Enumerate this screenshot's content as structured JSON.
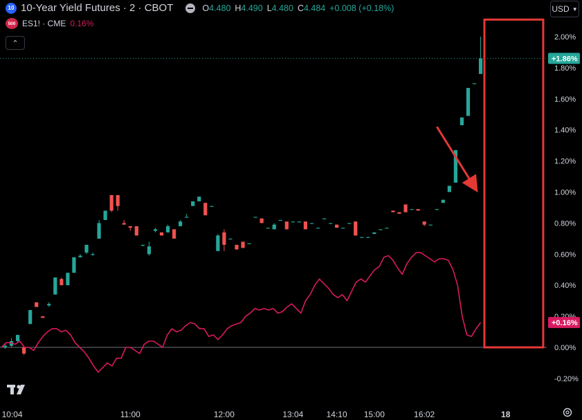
{
  "header": {
    "symbol_badge": "10",
    "title": "10-Year Yield Futures · 2 · CBOT",
    "ohlc": [
      {
        "k": "O",
        "v": "4.480"
      },
      {
        "k": "H",
        "v": "4.490"
      },
      {
        "k": "L",
        "v": "4.480"
      },
      {
        "k": "C",
        "v": "4.484"
      },
      {
        "k": "",
        "v": "+0.008 (+0.18%)"
      }
    ],
    "compare_badge": "500",
    "compare_label": "ES1! · CME",
    "compare_pct": "0.16%",
    "collapse_icon": "chevron-up-icon",
    "currency": "USD"
  },
  "colors": {
    "background": "#000000",
    "up": "#26a69a",
    "down": "#ef5350",
    "compare_line": "#d81b60",
    "annotation": "#e53935",
    "axis_text": "#d1d4dc"
  },
  "chart_data": {
    "type": "line",
    "subtype": "candlestick-with-comparison",
    "y_axis": {
      "unit": "%",
      "ticks": [
        "2.00%",
        "1.80%",
        "1.60%",
        "1.40%",
        "1.20%",
        "1.00%",
        "0.80%",
        "0.60%",
        "0.40%",
        "0.20%",
        "0.00%",
        "-0.20%"
      ],
      "range": [
        -0.25,
        2.1
      ]
    },
    "x_axis": {
      "ticks": [
        {
          "label": "10:04",
          "i": 2
        },
        {
          "label": "11:00",
          "i": 20
        },
        {
          "label": "12:00",
          "i": 35
        },
        {
          "label": "13:04",
          "i": 46
        },
        {
          "label": "14:10",
          "i": 53
        },
        {
          "label": "15:00",
          "i": 59
        },
        {
          "label": "16:02",
          "i": 67
        },
        {
          "label": "18",
          "i": 80
        }
      ],
      "bold_tick": "18"
    },
    "price_labels": [
      {
        "text": "+1.86%",
        "value": 1.86,
        "color": "#26a69a"
      },
      {
        "text": "+0.16%",
        "value": 0.16,
        "color": "#d81b60"
      }
    ],
    "zero_line": 0.0,
    "candles": [
      [
        0.0,
        0.02,
        -0.01,
        0.01
      ],
      [
        0.01,
        0.06,
        0.0,
        0.04
      ],
      [
        0.04,
        0.07,
        0.03,
        0.08
      ],
      [
        0.0,
        0.0,
        -0.05,
        -0.04
      ],
      [
        0.15,
        0.24,
        0.15,
        0.24
      ],
      [
        0.29,
        0.29,
        0.26,
        0.26
      ],
      [
        0.2,
        0.2,
        0.19,
        0.19
      ],
      [
        0.27,
        0.29,
        0.26,
        0.28
      ],
      [
        0.34,
        0.45,
        0.34,
        0.45
      ],
      [
        0.44,
        0.45,
        0.4,
        0.4
      ],
      [
        0.4,
        0.48,
        0.4,
        0.48
      ],
      [
        0.48,
        0.58,
        0.48,
        0.58
      ],
      [
        0.58,
        0.6,
        0.58,
        0.59
      ],
      [
        0.61,
        0.66,
        0.6,
        0.66
      ],
      [
        0.6,
        0.61,
        0.59,
        0.6
      ],
      [
        0.7,
        0.82,
        0.7,
        0.8
      ],
      [
        0.82,
        0.88,
        0.82,
        0.88
      ],
      [
        0.98,
        0.98,
        0.87,
        0.88
      ],
      [
        0.98,
        0.98,
        0.88,
        0.91
      ],
      [
        0.8,
        0.82,
        0.79,
        0.79
      ],
      [
        0.78,
        0.78,
        0.75,
        0.77
      ],
      [
        0.78,
        0.78,
        0.72,
        0.72
      ],
      [
        0.66,
        0.66,
        0.65,
        0.66
      ],
      [
        0.6,
        0.68,
        0.59,
        0.65
      ],
      [
        0.75,
        0.77,
        0.74,
        0.76
      ],
      [
        0.74,
        0.74,
        0.72,
        0.72
      ],
      [
        0.74,
        0.79,
        0.74,
        0.78
      ],
      [
        0.76,
        0.76,
        0.7,
        0.7
      ],
      [
        0.78,
        0.82,
        0.78,
        0.81
      ],
      [
        0.84,
        0.86,
        0.84,
        0.84
      ],
      [
        0.91,
        0.94,
        0.91,
        0.94
      ],
      [
        0.94,
        0.97,
        0.94,
        0.97
      ],
      [
        0.93,
        0.93,
        0.85,
        0.85
      ],
      [
        0.91,
        0.91,
        0.91,
        0.91
      ],
      [
        0.62,
        0.73,
        0.62,
        0.72
      ],
      [
        0.74,
        0.76,
        0.62,
        0.66
      ],
      [
        0.7,
        0.7,
        0.7,
        0.7
      ],
      [
        0.66,
        0.66,
        0.63,
        0.63
      ],
      [
        0.68,
        0.68,
        0.64,
        0.64
      ],
      [
        0.67,
        0.67,
        0.67,
        0.67
      ],
      [
        0.84,
        0.84,
        0.84,
        0.84
      ],
      [
        0.83,
        0.83,
        0.8,
        0.8
      ],
      [
        0.77,
        0.77,
        0.77,
        0.77
      ],
      [
        0.76,
        0.8,
        0.76,
        0.79
      ],
      [
        0.82,
        0.82,
        0.82,
        0.82
      ],
      [
        0.81,
        0.81,
        0.76,
        0.76
      ],
      [
        0.81,
        0.81,
        0.81,
        0.81
      ],
      [
        0.81,
        0.81,
        0.81,
        0.81
      ],
      [
        0.81,
        0.81,
        0.76,
        0.76
      ],
      [
        0.8,
        0.8,
        0.8,
        0.8
      ],
      [
        0.77,
        0.77,
        0.77,
        0.77
      ],
      [
        0.83,
        0.83,
        0.83,
        0.83
      ],
      [
        0.8,
        0.8,
        0.8,
        0.8
      ],
      [
        0.79,
        0.79,
        0.77,
        0.77
      ],
      [
        0.77,
        0.77,
        0.77,
        0.77
      ],
      [
        0.8,
        0.8,
        0.8,
        0.8
      ],
      [
        0.81,
        0.81,
        0.72,
        0.72
      ],
      [
        0.71,
        0.71,
        0.71,
        0.71
      ],
      [
        0.71,
        0.71,
        0.71,
        0.71
      ],
      [
        0.73,
        0.74,
        0.73,
        0.74
      ],
      [
        0.76,
        0.76,
        0.76,
        0.76
      ],
      [
        0.77,
        0.77,
        0.77,
        0.77
      ],
      [
        0.88,
        0.88,
        0.87,
        0.87
      ],
      [
        0.87,
        0.87,
        0.86,
        0.86
      ],
      [
        0.92,
        0.92,
        0.87,
        0.87
      ],
      [
        0.89,
        0.89,
        0.89,
        0.89
      ],
      [
        0.89,
        0.89,
        0.88,
        0.88
      ],
      [
        0.81,
        0.81,
        0.78,
        0.79
      ],
      [
        0.79,
        0.79,
        0.79,
        0.79
      ],
      [
        0.89,
        0.89,
        0.89,
        0.89
      ],
      [
        0.93,
        0.95,
        0.93,
        0.95
      ],
      [
        1.0,
        1.04,
        1.0,
        1.04
      ],
      [
        1.06,
        1.27,
        1.06,
        1.27
      ],
      [
        1.43,
        1.48,
        1.43,
        1.48
      ],
      [
        1.49,
        1.67,
        1.49,
        1.67
      ],
      [
        1.7,
        1.7,
        1.7,
        1.7
      ],
      [
        1.76,
        2.0,
        1.76,
        1.86
      ]
    ],
    "compare_series": {
      "name": "ES1!",
      "values": [
        0.0,
        0.03,
        0.03,
        0.02,
        0.04,
        0.0,
        0.0,
        -0.02,
        0.03,
        0.07,
        0.1,
        0.12,
        0.12,
        0.1,
        0.11,
        0.08,
        0.03,
        0.0,
        -0.03,
        -0.07,
        -0.12,
        -0.16,
        -0.13,
        -0.1,
        -0.12,
        -0.07,
        -0.07,
        0.0,
        0.0,
        -0.02,
        -0.04,
        0.02,
        0.04,
        0.04,
        0.02,
        0.0,
        0.08,
        0.12,
        0.1,
        0.11,
        0.14,
        0.16,
        0.15,
        0.12,
        0.12,
        0.07,
        0.08,
        0.05,
        0.08,
        0.12,
        0.14,
        0.15,
        0.16,
        0.2,
        0.22,
        0.25,
        0.24,
        0.25,
        0.24,
        0.25,
        0.22,
        0.23,
        0.26,
        0.28,
        0.25,
        0.22,
        0.3,
        0.34,
        0.4,
        0.44,
        0.41,
        0.38,
        0.34,
        0.32,
        0.34,
        0.3,
        0.36,
        0.42,
        0.44,
        0.42,
        0.46,
        0.5,
        0.52,
        0.58,
        0.59,
        0.56,
        0.51,
        0.47,
        0.54,
        0.58,
        0.61,
        0.61,
        0.59,
        0.57,
        0.55,
        0.57,
        0.57,
        0.56,
        0.5,
        0.4,
        0.2,
        0.08,
        0.07,
        0.12,
        0.16
      ]
    },
    "annotation": {
      "box": {
        "i0": 76.6,
        "i1": 86.0,
        "y0": 2.11,
        "y1": 0.0
      },
      "arrow": {
        "from": [
          69.0,
          1.42
        ],
        "to": [
          75.2,
          1.02
        ]
      }
    }
  }
}
